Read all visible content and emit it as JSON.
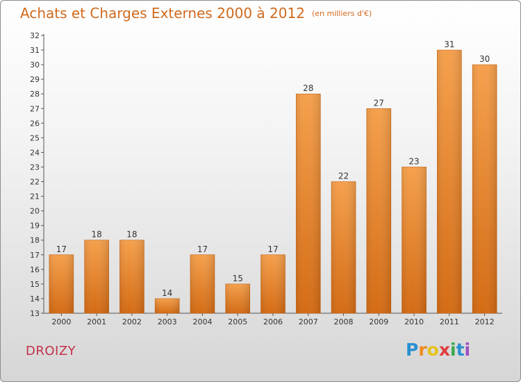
{
  "header": {
    "title": "Achats et Charges Externes 2000 à 2012",
    "unit": "(en milliers d'€)"
  },
  "footer": {
    "commune": "DROIZY",
    "logo_letters": [
      "P",
      "r",
      "o",
      "x",
      "i",
      "t",
      "i"
    ],
    "logo_colors": [
      "#2a8fd0",
      "#f08a1c",
      "#e6c21a",
      "#e23c3c",
      "#3aa84a",
      "#2a8fd0",
      "#9b4fc2"
    ]
  },
  "chart_data": {
    "type": "bar",
    "categories": [
      "2000",
      "2001",
      "2002",
      "2003",
      "2004",
      "2005",
      "2006",
      "2007",
      "2008",
      "2009",
      "2010",
      "2011",
      "2012"
    ],
    "values": [
      17,
      18,
      18,
      14,
      17,
      15,
      17,
      28,
      22,
      27,
      23,
      31,
      30
    ],
    "ylim": [
      13,
      32
    ],
    "yticks": [
      13,
      14,
      15,
      16,
      17,
      18,
      19,
      20,
      21,
      22,
      23,
      24,
      25,
      26,
      27,
      28,
      29,
      30,
      31,
      32
    ],
    "grid": false,
    "bar_color": "#f08c2c",
    "bar_color_dark": "#d46b14"
  }
}
